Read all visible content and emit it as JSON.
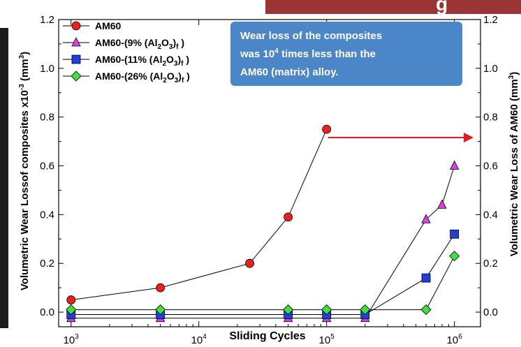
{
  "colors": {
    "banner": "#9b3535",
    "left_edge_bar": "#1c1c1c",
    "annotation_bg": "#4a86c8",
    "annotation_text": "#ffffff",
    "arrow": "#e21a1a",
    "line": "#000000"
  },
  "banner_text": "g",
  "annotation": {
    "line1": "Wear loss of the composites",
    "line2_pre": "was 10",
    "line2_sup": "4",
    "line2_post": " times less than the",
    "line3": "AM60 (matrix) alloy."
  },
  "chart_data": {
    "type": "line",
    "xlabel": "Sliding Cycles",
    "ylabel_left": {
      "text": "Volumetric Wear Lossof composites x10",
      "exp": "-3",
      "unit_pre": " (mm",
      "unit_sup": "3",
      "unit_post": ")"
    },
    "ylabel_right": {
      "text": "Volumetric Wear Loss of AM60 (mm",
      "unit_sup": "3",
      "unit_post": ")"
    },
    "x_scale": "log",
    "xlim": [
      800,
      1600000
    ],
    "ylim": [
      -0.06,
      1.2
    ],
    "x_ticks": [
      {
        "value": 1000,
        "base": "10",
        "exp": "3"
      },
      {
        "value": 10000,
        "base": "10",
        "exp": "4"
      },
      {
        "value": 100000,
        "base": "10",
        "exp": "5"
      },
      {
        "value": 1000000,
        "base": "10",
        "exp": "6"
      }
    ],
    "y_ticks": [
      {
        "value": 0.0,
        "label": "0.0"
      },
      {
        "value": 0.2,
        "label": "0.2"
      },
      {
        "value": 0.4,
        "label": "0.4"
      },
      {
        "value": 0.6,
        "label": "0.6"
      },
      {
        "value": 0.8,
        "label": "0.8"
      },
      {
        "value": 1.0,
        "label": "1.0"
      },
      {
        "value": 1.2,
        "label": "1.2"
      }
    ],
    "legend_position": "top-left",
    "series": [
      {
        "legend": {
          "pre": "AM60"
        },
        "color": "#e8201e",
        "marker": "circle",
        "points": [
          [
            1000,
            0.05
          ],
          [
            5000,
            0.1
          ],
          [
            25000,
            0.2
          ],
          [
            50000,
            0.39
          ],
          [
            100000,
            0.75
          ]
        ]
      },
      {
        "legend": {
          "pre": "AM60-(9% (Al",
          "s1": "2",
          "mid": "O",
          "s2": "3",
          "post": ")",
          "s3": "f",
          "end": " )"
        },
        "color": "#dd3ee0",
        "marker": "triangle",
        "points": [
          [
            1000,
            -0.025
          ],
          [
            5000,
            -0.025
          ],
          [
            50000,
            -0.025
          ],
          [
            100000,
            -0.025
          ],
          [
            200000,
            -0.025
          ],
          [
            600000,
            0.38
          ],
          [
            800000,
            0.44
          ],
          [
            1000000,
            0.6
          ]
        ]
      },
      {
        "legend": {
          "pre": "AM60-(11% (Al",
          "s1": "2",
          "mid": "O",
          "s2": "3",
          "post": ")",
          "s3": "f",
          "end": " )"
        },
        "color": "#1f3fe0",
        "marker": "square",
        "points": [
          [
            1000,
            -0.01
          ],
          [
            5000,
            -0.01
          ],
          [
            50000,
            -0.01
          ],
          [
            100000,
            -0.01
          ],
          [
            200000,
            -0.01
          ],
          [
            600000,
            0.14
          ],
          [
            1000000,
            0.32
          ]
        ]
      },
      {
        "legend": {
          "pre": "AM60-(26% (Al",
          "s1": "2",
          "mid": "O",
          "s2": "3",
          "post": ")",
          "s3": "f",
          "end": " )"
        },
        "color": "#3ee03a",
        "marker": "diamond",
        "points": [
          [
            1000,
            0.01
          ],
          [
            5000,
            0.01
          ],
          [
            50000,
            0.01
          ],
          [
            100000,
            0.01
          ],
          [
            200000,
            0.01
          ],
          [
            600000,
            0.01
          ],
          [
            1000000,
            0.23
          ]
        ]
      }
    ]
  }
}
